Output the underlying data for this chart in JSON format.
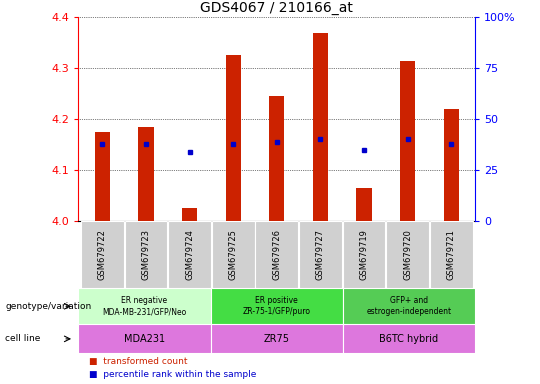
{
  "title": "GDS4067 / 210166_at",
  "samples": [
    "GSM679722",
    "GSM679723",
    "GSM679724",
    "GSM679725",
    "GSM679726",
    "GSM679727",
    "GSM679719",
    "GSM679720",
    "GSM679721"
  ],
  "bar_values": [
    4.175,
    4.185,
    4.025,
    4.325,
    4.245,
    4.37,
    4.065,
    4.315,
    4.22
  ],
  "percentile_values": [
    4.15,
    4.15,
    4.135,
    4.15,
    4.155,
    4.16,
    4.14,
    4.16,
    4.15
  ],
  "bar_color": "#cc2200",
  "point_color": "#0000cc",
  "ylim": [
    4.0,
    4.4
  ],
  "yticks": [
    4.0,
    4.1,
    4.2,
    4.3,
    4.4
  ],
  "right_yticks": [
    0,
    25,
    50,
    75,
    100
  ],
  "groups": [
    {
      "label": "ER negative\nMDA-MB-231/GFP/Neo",
      "color": "#ccffcc",
      "start": 0,
      "end": 3
    },
    {
      "label": "ER positive\nZR-75-1/GFP/puro",
      "color": "#44dd44",
      "start": 3,
      "end": 6
    },
    {
      "label": "GFP+ and\nestrogen-independent",
      "color": "#55cc55",
      "start": 6,
      "end": 9
    }
  ],
  "cell_lines": [
    {
      "label": "MDA231",
      "start": 0,
      "end": 3
    },
    {
      "label": "ZR75",
      "start": 3,
      "end": 6
    },
    {
      "label": "B6TC hybrid",
      "start": 6,
      "end": 9
    }
  ],
  "cell_line_color": "#dd77dd",
  "genotype_label": "genotype/variation",
  "cell_line_label": "cell line",
  "legend_bar_label": "transformed count",
  "legend_point_label": "percentile rank within the sample",
  "bar_width": 0.35,
  "xticklabel_bg": "#d0d0d0"
}
